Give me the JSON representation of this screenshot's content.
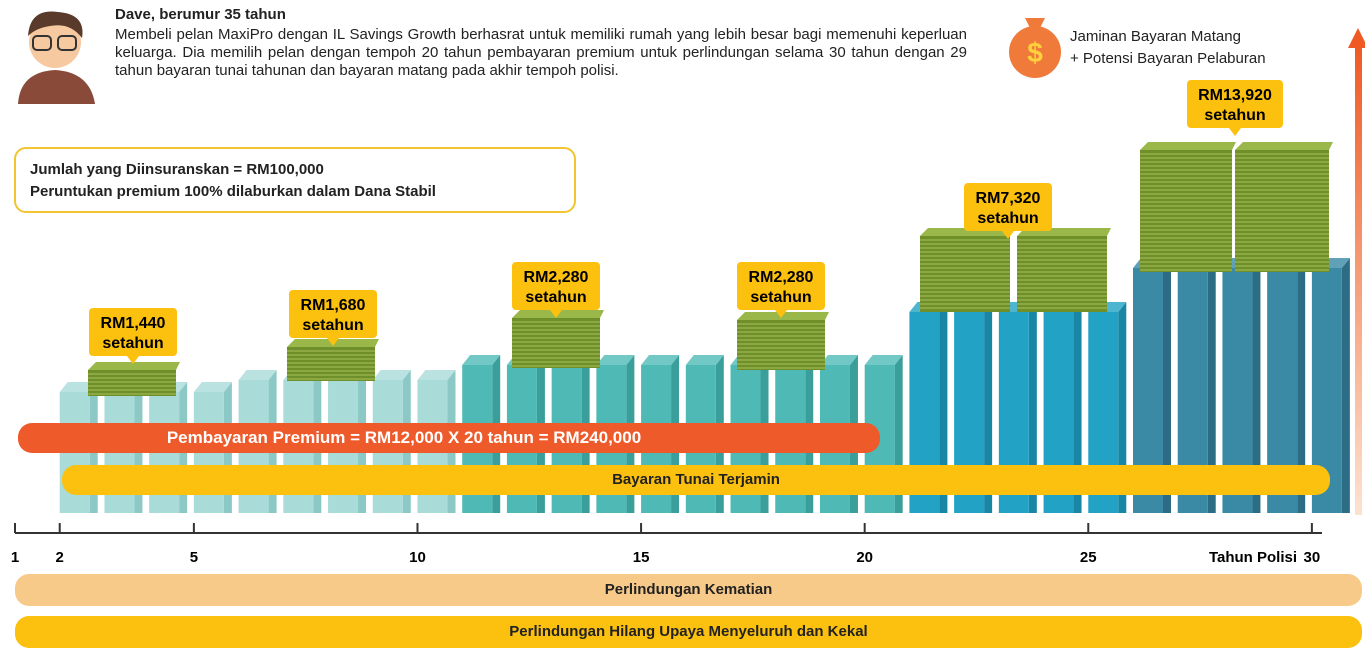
{
  "profile": {
    "name": "Dave, berumur 35 tahun",
    "description": "Membeli pelan MaxiPro dengan IL Savings Growth berhasrat untuk memiliki rumah yang lebih besar bagi memenuhi keperluan keluarga. Dia memilih pelan dengan tempoh 20 tahun pembayaran premium untuk perlindungan selama 30 tahun dengan 29 tahun bayaran tunai tahunan dan bayaran matang pada akhir tempoh polisi."
  },
  "legend": {
    "line1": "Jaminan Bayaran Matang",
    "line2": "+ Potensi Bayaran Pelaburan"
  },
  "info_box": {
    "line1": "Jumlah yang Diinsuranskan = RM100,000",
    "line2": "Peruntukan premium 100% dilaburkan dalam Dana Stabil"
  },
  "payouts": [
    {
      "amount": "RM1,440",
      "unit": "setahun"
    },
    {
      "amount": "RM1,680",
      "unit": "setahun"
    },
    {
      "amount": "RM2,280",
      "unit": "setahun"
    },
    {
      "amount": "RM2,280",
      "unit": "setahun"
    },
    {
      "amount": "RM7,320",
      "unit": "setahun"
    },
    {
      "amount": "RM13,920",
      "unit": "setahun"
    }
  ],
  "premium_bar": "Pembayaran Premium = RM12,000 X 20 tahun = RM240,000",
  "cash_bar": "Bayaran Tunai Terjamin",
  "timeline": {
    "ticks": [
      1,
      2,
      5,
      10,
      15,
      20,
      25,
      30
    ],
    "label": "Tahun Polisi"
  },
  "coverage": [
    "Perlindungan Kematian",
    "Perlindungan Hilang Upaya Menyeluruh dan Kekal"
  ]
}
